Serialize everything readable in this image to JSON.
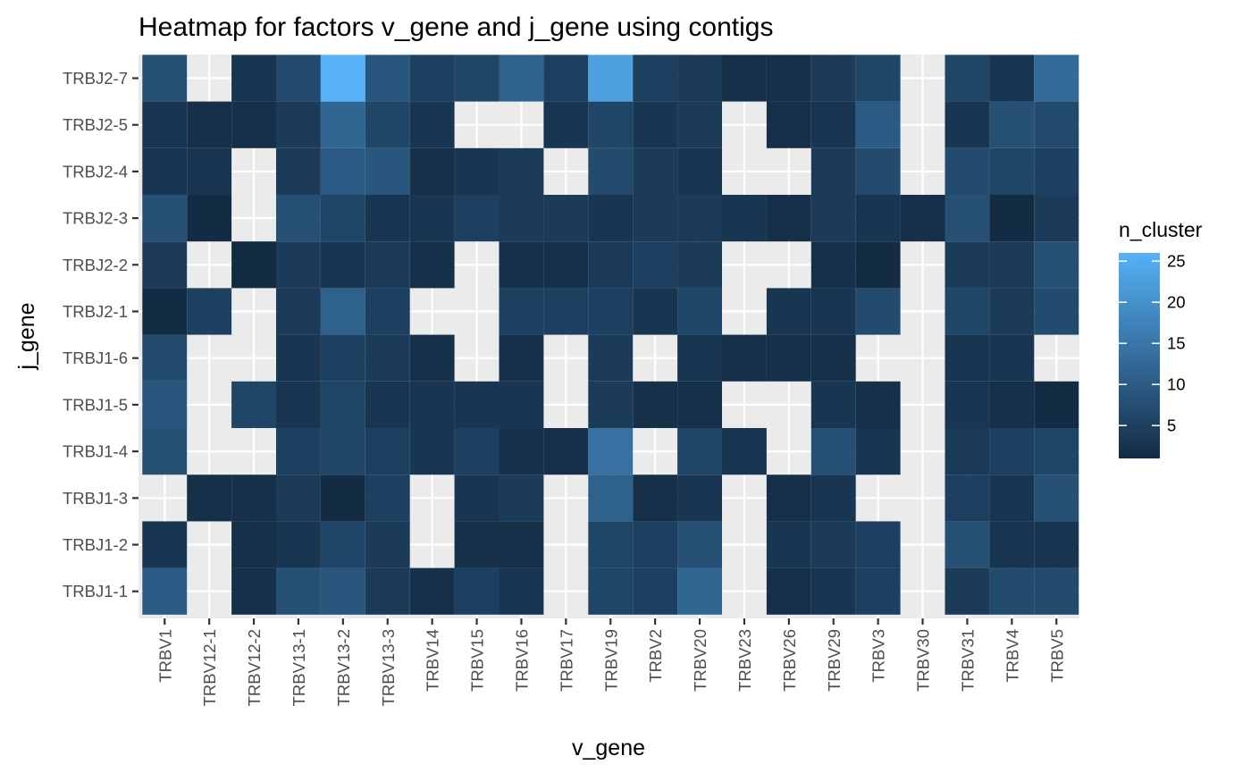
{
  "chart_data": {
    "type": "heatmap",
    "title": "Heatmap for factors v_gene and j_gene using contigs",
    "xlabel": "v_gene",
    "ylabel": "j_gene",
    "x_categories": [
      "TRBV1",
      "TRBV12-1",
      "TRBV12-2",
      "TRBV13-1",
      "TRBV13-2",
      "TRBV13-3",
      "TRBV14",
      "TRBV15",
      "TRBV16",
      "TRBV17",
      "TRBV19",
      "TRBV2",
      "TRBV20",
      "TRBV23",
      "TRBV26",
      "TRBV29",
      "TRBV3",
      "TRBV30",
      "TRBV31",
      "TRBV4",
      "TRBV5"
    ],
    "y_categories": [
      "TRBJ1-1",
      "TRBJ1-2",
      "TRBJ1-3",
      "TRBJ1-4",
      "TRBJ1-5",
      "TRBJ1-6",
      "TRBJ2-1",
      "TRBJ2-2",
      "TRBJ2-3",
      "TRBJ2-4",
      "TRBJ2-5",
      "TRBJ2-7"
    ],
    "values": [
      [
        10,
        null,
        2,
        8,
        9,
        4,
        2,
        5,
        3,
        null,
        6,
        5,
        12,
        null,
        2,
        3,
        5,
        null,
        4,
        7,
        7
      ],
      [
        3,
        null,
        2,
        3,
        6,
        4,
        null,
        2,
        2,
        null,
        6,
        5,
        8,
        null,
        3,
        4,
        5,
        null,
        8,
        3,
        3
      ],
      [
        null,
        2,
        2,
        4,
        1,
        5,
        null,
        3,
        4,
        null,
        11,
        2,
        3,
        null,
        2,
        3,
        null,
        null,
        5,
        3,
        8
      ],
      [
        8,
        null,
        null,
        5,
        6,
        5,
        3,
        5,
        2,
        2,
        14,
        null,
        6,
        3,
        null,
        8,
        3,
        null,
        4,
        5,
        6
      ],
      [
        9,
        null,
        6,
        3,
        6,
        3,
        3,
        3,
        3,
        null,
        4,
        2,
        2,
        null,
        null,
        3,
        2,
        null,
        3,
        2,
        1
      ],
      [
        7,
        null,
        null,
        3,
        5,
        4,
        2,
        null,
        2,
        null,
        4,
        null,
        3,
        2,
        2,
        2,
        null,
        null,
        3,
        3,
        null
      ],
      [
        1,
        5,
        null,
        4,
        11,
        5,
        null,
        null,
        5,
        5,
        5,
        3,
        6,
        null,
        3,
        3,
        7,
        null,
        6,
        4,
        7
      ],
      [
        4,
        null,
        1,
        4,
        3,
        4,
        2,
        null,
        2,
        2,
        4,
        5,
        4,
        null,
        null,
        2,
        1,
        null,
        4,
        4,
        8
      ],
      [
        8,
        1,
        null,
        8,
        6,
        3,
        3,
        5,
        4,
        4,
        3,
        4,
        4,
        3,
        2,
        4,
        3,
        2,
        8,
        1,
        4
      ],
      [
        3,
        3,
        null,
        4,
        10,
        9,
        2,
        3,
        4,
        null,
        7,
        4,
        3,
        null,
        null,
        4,
        7,
        null,
        7,
        6,
        5
      ],
      [
        3,
        2,
        2,
        4,
        12,
        6,
        3,
        null,
        null,
        3,
        6,
        3,
        4,
        null,
        2,
        3,
        10,
        null,
        3,
        8,
        7
      ],
      [
        8,
        null,
        3,
        7,
        26,
        9,
        5,
        6,
        11,
        5,
        23,
        5,
        4,
        2,
        2,
        4,
        6,
        null,
        6,
        3,
        13
      ]
    ],
    "colorbar": {
      "title": "n_cluster",
      "min": 1,
      "max": 26,
      "ticks": [
        5,
        10,
        15,
        20,
        25
      ],
      "low_color": "#132B43",
      "high_color": "#56B1F7"
    },
    "missing_color": "#EBEBEB",
    "grid": true,
    "legend_position": "right"
  }
}
